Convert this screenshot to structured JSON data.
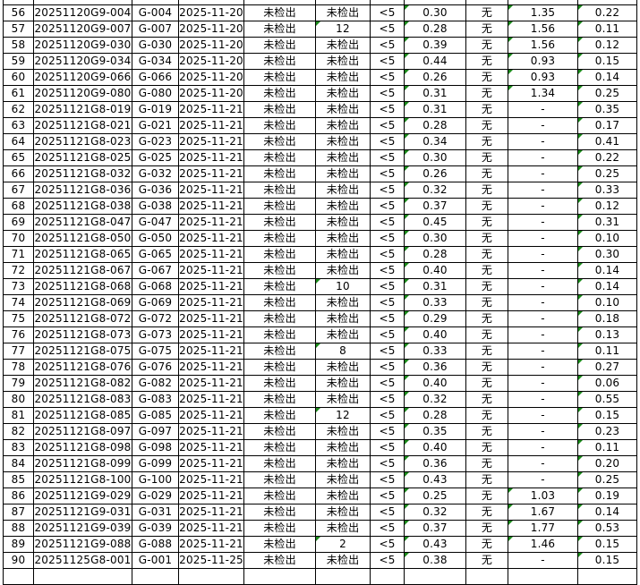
{
  "columns_count": 11,
  "rows": [
    [
      "56",
      "20251120G9-004",
      "G-004",
      "2025-11-20",
      "未检出",
      "未检出",
      "<5",
      "0.30",
      "无",
      "1.35",
      "0.22"
    ],
    [
      "57",
      "20251120G9-007",
      "G-007",
      "2025-11-20",
      "未检出",
      "12",
      "<5",
      "0.28",
      "无",
      "1.56",
      "0.11"
    ],
    [
      "58",
      "20251120G9-030",
      "G-030",
      "2025-11-20",
      "未检出",
      "未检出",
      "<5",
      "0.39",
      "无",
      "1.56",
      "0.12"
    ],
    [
      "59",
      "20251120G9-034",
      "G-034",
      "2025-11-20",
      "未检出",
      "未检出",
      "<5",
      "0.44",
      "无",
      "0.93",
      "0.15"
    ],
    [
      "60",
      "20251120G9-066",
      "G-066",
      "2025-11-20",
      "未检出",
      "未检出",
      "<5",
      "0.26",
      "无",
      "0.93",
      "0.14"
    ],
    [
      "61",
      "20251120G9-080",
      "G-080",
      "2025-11-20",
      "未检出",
      "未检出",
      "<5",
      "0.31",
      "无",
      "1.34",
      "0.25"
    ],
    [
      "62",
      "20251121G8-019",
      "G-019",
      "2025-11-21",
      "未检出",
      "未检出",
      "<5",
      "0.31",
      "无",
      "-",
      "0.35"
    ],
    [
      "63",
      "20251121G8-021",
      "G-021",
      "2025-11-21",
      "未检出",
      "未检出",
      "<5",
      "0.28",
      "无",
      "-",
      "0.17"
    ],
    [
      "64",
      "20251121G8-023",
      "G-023",
      "2025-11-21",
      "未检出",
      "未检出",
      "<5",
      "0.34",
      "无",
      "-",
      "0.41"
    ],
    [
      "65",
      "20251121G8-025",
      "G-025",
      "2025-11-21",
      "未检出",
      "未检出",
      "<5",
      "0.30",
      "无",
      "-",
      "0.22"
    ],
    [
      "66",
      "20251121G8-032",
      "G-032",
      "2025-11-21",
      "未检出",
      "未检出",
      "<5",
      "0.26",
      "无",
      "-",
      "0.25"
    ],
    [
      "67",
      "20251121G8-036",
      "G-036",
      "2025-11-21",
      "未检出",
      "未检出",
      "<5",
      "0.32",
      "无",
      "-",
      "0.33"
    ],
    [
      "68",
      "20251121G8-038",
      "G-038",
      "2025-11-21",
      "未检出",
      "未检出",
      "<5",
      "0.37",
      "无",
      "-",
      "0.12"
    ],
    [
      "69",
      "20251121G8-047",
      "G-047",
      "2025-11-21",
      "未检出",
      "未检出",
      "<5",
      "0.45",
      "无",
      "-",
      "0.31"
    ],
    [
      "70",
      "20251121G8-050",
      "G-050",
      "2025-11-21",
      "未检出",
      "未检出",
      "<5",
      "0.30",
      "无",
      "-",
      "0.10"
    ],
    [
      "71",
      "20251121G8-065",
      "G-065",
      "2025-11-21",
      "未检出",
      "未检出",
      "<5",
      "0.28",
      "无",
      "-",
      "0.30"
    ],
    [
      "72",
      "20251121G8-067",
      "G-067",
      "2025-11-21",
      "未检出",
      "未检出",
      "<5",
      "0.40",
      "无",
      "-",
      "0.14"
    ],
    [
      "73",
      "20251121G8-068",
      "G-068",
      "2025-11-21",
      "未检出",
      "10",
      "<5",
      "0.31",
      "无",
      "-",
      "0.14"
    ],
    [
      "74",
      "20251121G8-069",
      "G-069",
      "2025-11-21",
      "未检出",
      "未检出",
      "<5",
      "0.33",
      "无",
      "-",
      "0.10"
    ],
    [
      "75",
      "20251121G8-072",
      "G-072",
      "2025-11-21",
      "未检出",
      "未检出",
      "<5",
      "0.29",
      "无",
      "-",
      "0.18"
    ],
    [
      "76",
      "20251121G8-073",
      "G-073",
      "2025-11-21",
      "未检出",
      "未检出",
      "<5",
      "0.40",
      "无",
      "-",
      "0.13"
    ],
    [
      "77",
      "20251121G8-075",
      "G-075",
      "2025-11-21",
      "未检出",
      "8",
      "<5",
      "0.33",
      "无",
      "-",
      "0.11"
    ],
    [
      "78",
      "20251121G8-076",
      "G-076",
      "2025-11-21",
      "未检出",
      "未检出",
      "<5",
      "0.36",
      "无",
      "-",
      "0.27"
    ],
    [
      "79",
      "20251121G8-082",
      "G-082",
      "2025-11-21",
      "未检出",
      "未检出",
      "<5",
      "0.40",
      "无",
      "-",
      "0.06"
    ],
    [
      "80",
      "20251121G8-083",
      "G-083",
      "2025-11-21",
      "未检出",
      "未检出",
      "<5",
      "0.32",
      "无",
      "-",
      "0.55"
    ],
    [
      "81",
      "20251121G8-085",
      "G-085",
      "2025-11-21",
      "未检出",
      "12",
      "<5",
      "0.28",
      "无",
      "-",
      "0.15"
    ],
    [
      "82",
      "20251121G8-097",
      "G-097",
      "2025-11-21",
      "未检出",
      "未检出",
      "<5",
      "0.35",
      "无",
      "-",
      "0.23"
    ],
    [
      "83",
      "20251121G8-098",
      "G-098",
      "2025-11-21",
      "未检出",
      "未检出",
      "<5",
      "0.40",
      "无",
      "-",
      "0.11"
    ],
    [
      "84",
      "20251121G8-099",
      "G-099",
      "2025-11-21",
      "未检出",
      "未检出",
      "<5",
      "0.36",
      "无",
      "-",
      "0.20"
    ],
    [
      "85",
      "20251121G8-100",
      "G-100",
      "2025-11-21",
      "未检出",
      "未检出",
      "<5",
      "0.43",
      "无",
      "-",
      "0.25"
    ],
    [
      "86",
      "20251121G9-029",
      "G-029",
      "2025-11-21",
      "未检出",
      "未检出",
      "<5",
      "0.25",
      "无",
      "1.03",
      "0.19"
    ],
    [
      "87",
      "20251121G9-031",
      "G-031",
      "2025-11-21",
      "未检出",
      "未检出",
      "<5",
      "0.32",
      "无",
      "1.67",
      "0.14"
    ],
    [
      "88",
      "20251121G9-039",
      "G-039",
      "2025-11-21",
      "未检出",
      "未检出",
      "<5",
      "0.37",
      "无",
      "1.77",
      "0.53"
    ],
    [
      "89",
      "20251121G9-088",
      "G-088",
      "2025-11-21",
      "未检出",
      "2",
      "<5",
      "0.43",
      "无",
      "1.46",
      "0.15"
    ],
    [
      "90",
      "20251125G8-001",
      "G-001",
      "2025-11-25",
      "未检出",
      "未检出",
      "<5",
      "0.38",
      "无",
      "-",
      "0.15"
    ]
  ],
  "colors": {
    "grid": "#000000",
    "text_number_marker": "#1a8a1a"
  }
}
